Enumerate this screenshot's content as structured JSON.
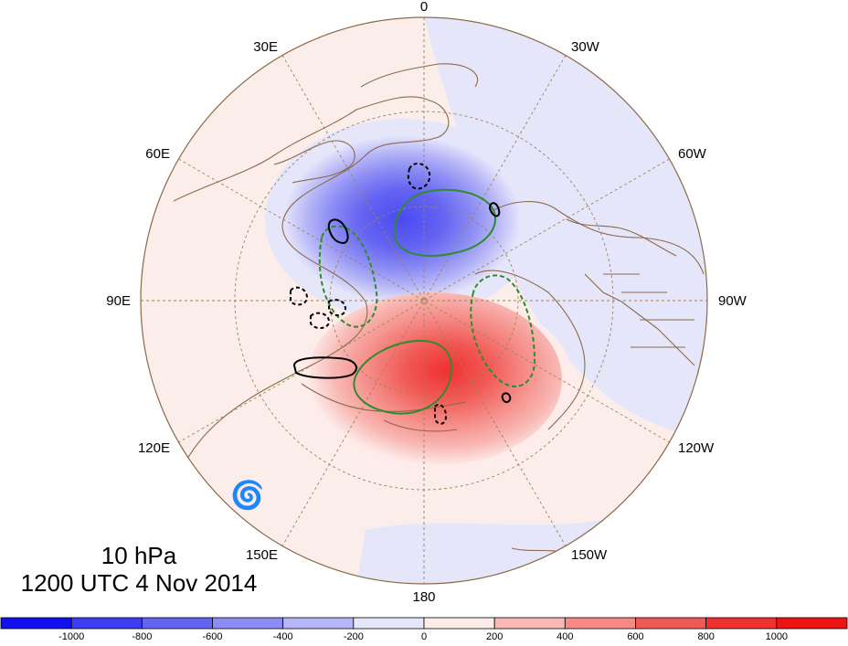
{
  "map": {
    "projection": "north-polar-stereographic",
    "longitude_labels": [
      "0",
      "30W",
      "60W",
      "90W",
      "120W",
      "150W",
      "180",
      "150E",
      "120E",
      "90E",
      "60E",
      "30E"
    ],
    "colors": {
      "ocean_land_neutral": "#fbeeea",
      "coast": "#8b6a4a",
      "graticule": "#a0805a",
      "neg_contour": "#000000",
      "pos_contour_green": "#2e8b2e",
      "tropical_symbol": "#e020e0"
    },
    "tropical_cyclone_symbol": "tropical-storm-icon",
    "shaded_anomaly_units": "contour interval 200"
  },
  "title": {
    "level": "10 hPa",
    "time": "1200 UTC 4 Nov 2014"
  },
  "colorbar": {
    "labels": [
      "-1000",
      "-800",
      "-600",
      "-400",
      "-200",
      "0",
      "200",
      "400",
      "600",
      "800",
      "1000"
    ],
    "colors": [
      "#1010f0",
      "#3d3df2",
      "#6464f2",
      "#8c8cf4",
      "#b5b5f7",
      "#e6e6fb",
      "#fdecea",
      "#f8b8b4",
      "#f58a86",
      "#f05a56",
      "#ee3030",
      "#ee1414"
    ]
  }
}
